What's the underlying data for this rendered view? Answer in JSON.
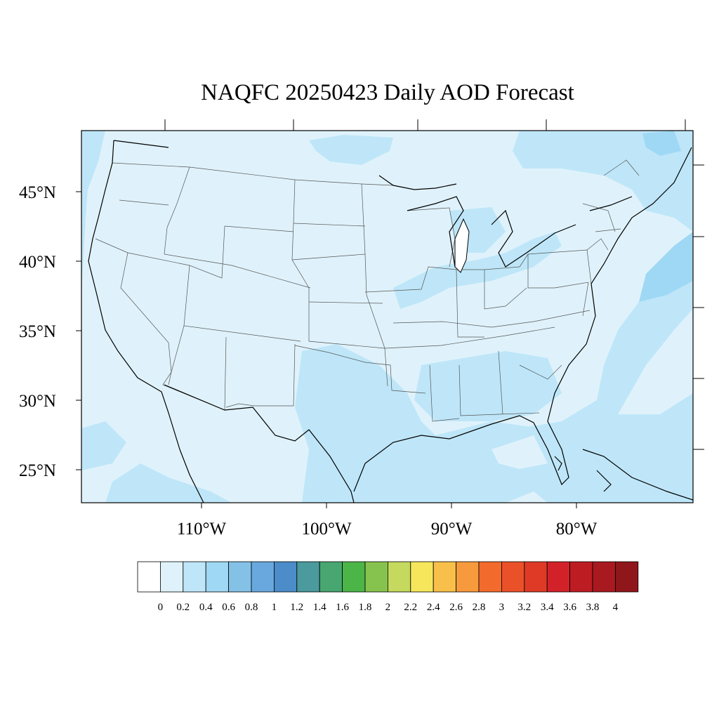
{
  "title": "NAQFC 20250423 Daily AOD Forecast",
  "map": {
    "lat_labels": [
      "45°N",
      "40°N",
      "35°N",
      "30°N",
      "25°N"
    ],
    "lon_labels": [
      "110°W",
      "100°W",
      "90°W",
      "80°W"
    ]
  },
  "legend": {
    "ticks": [
      "0",
      "0.2",
      "0.4",
      "0.6",
      "0.8",
      "1",
      "1.2",
      "1.4",
      "1.6",
      "1.8",
      "2",
      "2.2",
      "2.4",
      "2.6",
      "2.8",
      "3",
      "3.2",
      "3.4",
      "3.6",
      "3.8",
      "4"
    ],
    "colors": [
      "#ffffff",
      "#dff2fb",
      "#bee6f8",
      "#9fd8f4",
      "#84c1e7",
      "#68a8de",
      "#4b8cc9",
      "#4a9a9e",
      "#48a670",
      "#4cb548",
      "#86c34e",
      "#c4d95d",
      "#f6e65c",
      "#f8c04a",
      "#f69a3d",
      "#f26b2c",
      "#ea5128",
      "#df3a26",
      "#d32129",
      "#bd1c23",
      "#a91a20",
      "#8f161a"
    ]
  },
  "palette": {
    "land_base": "#dff2fb",
    "aod_02_04": "#bee6f8",
    "aod_04_06": "#9fd8f4"
  }
}
